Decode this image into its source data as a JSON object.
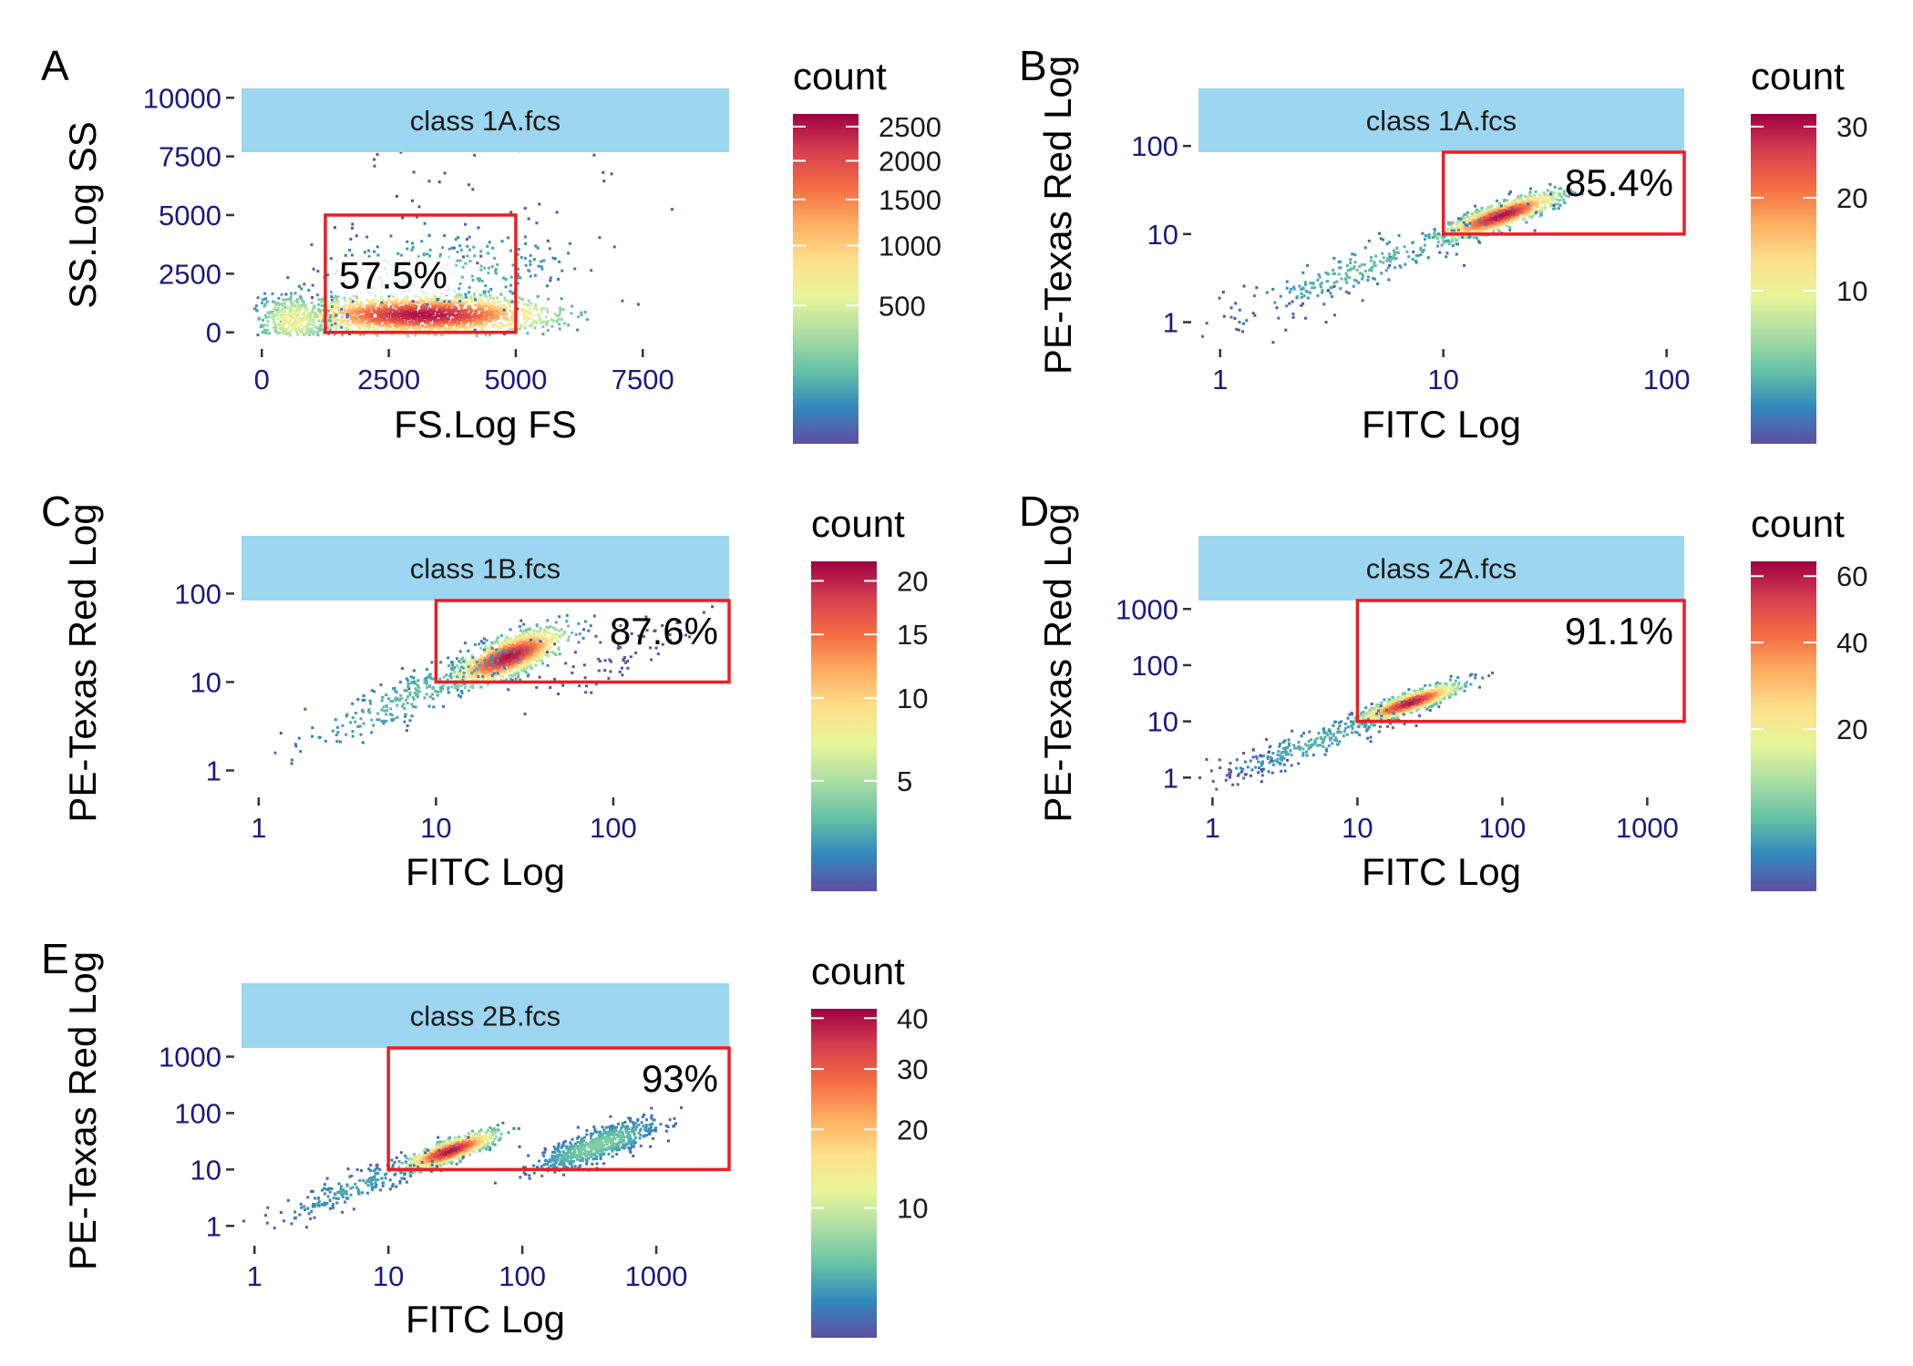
{
  "figure": {
    "strip_color": "#9dd6f0",
    "gate_color": "#ee1c24",
    "tick_label_color": "#1a1a80",
    "palette": [
      "#5e4fa2",
      "#3288bd",
      "#66c2a5",
      "#abdda4",
      "#e6f598",
      "#fee08b",
      "#fdae61",
      "#f46d43",
      "#d53e4f",
      "#9e0142"
    ]
  },
  "chart_data": [
    {
      "panel": "A",
      "type": "heatmap",
      "strip_title": "class 1A.fcs",
      "xlabel": "FS.Log FS",
      "ylabel": "SS.Log SS",
      "xscale": "linear",
      "yscale": "linear",
      "xlim": [
        -400,
        9200
      ],
      "ylim": [
        -400,
        10400
      ],
      "xticks": [
        {
          "value": 0,
          "label": "0"
        },
        {
          "value": 2500,
          "label": "2500"
        },
        {
          "value": 5000,
          "label": "5000"
        },
        {
          "value": 7500,
          "label": "7500"
        }
      ],
      "yticks": [
        {
          "value": 0,
          "label": "0"
        },
        {
          "value": 2500,
          "label": "2500"
        },
        {
          "value": 5000,
          "label": "5000"
        },
        {
          "value": 7500,
          "label": "7500"
        },
        {
          "value": 10000,
          "label": "10000"
        }
      ],
      "gate": {
        "x": [
          1250,
          5000
        ],
        "y": [
          0,
          5000
        ]
      },
      "gate_label": "57.5%",
      "gate_label_position": "center",
      "legend_title": "count",
      "legend_scale": "sqrt",
      "legend_range": [
        1,
        2700
      ],
      "legend_ticks": [
        {
          "value": 500,
          "label": "500"
        },
        {
          "value": 1000,
          "label": "1000"
        },
        {
          "value": 1500,
          "label": "1500"
        },
        {
          "value": 2000,
          "label": "2000"
        },
        {
          "value": 2500,
          "label": "2500"
        }
      ],
      "populations": [
        {
          "cx": 3150,
          "cy": 800,
          "sx": 1250,
          "sy": 420,
          "n": 1700,
          "weight": 1.0
        },
        {
          "cx": 600,
          "cy": 600,
          "sx": 380,
          "sy": 550,
          "n": 350,
          "weight": 0.25
        },
        {
          "cx": 3800,
          "cy": 2800,
          "sx": 1200,
          "sy": 800,
          "n": 220,
          "weight": 0.05
        },
        {
          "cx": 3500,
          "cy": 5500,
          "sx": 1900,
          "sy": 2200,
          "n": 60,
          "weight": 0.0
        }
      ]
    },
    {
      "panel": "B",
      "type": "heatmap",
      "strip_title": "class 1A.fcs",
      "xlabel": "FITC Log",
      "ylabel": "PE-Texas Red Log",
      "xscale": "log",
      "yscale": "log",
      "xlim": [
        0.8,
        120
      ],
      "ylim": [
        0.6,
        450
      ],
      "xticks": [
        {
          "value": 1,
          "label": "1"
        },
        {
          "value": 10,
          "label": "10"
        },
        {
          "value": 100,
          "label": "100"
        }
      ],
      "yticks": [
        {
          "value": 1,
          "label": "1"
        },
        {
          "value": 10,
          "label": "10"
        },
        {
          "value": 100,
          "label": "100"
        }
      ],
      "gate": {
        "x": [
          10,
          120
        ],
        "y": [
          10,
          100
        ]
      },
      "gate_label": "85.4%",
      "gate_label_position": "top-right",
      "legend_title": "count",
      "legend_scale": "sqrt",
      "legend_range": [
        1,
        32
      ],
      "legend_ticks": [
        {
          "value": 10,
          "label": "10"
        },
        {
          "value": 20,
          "label": "20"
        },
        {
          "value": 30,
          "label": "30"
        }
      ],
      "populations": [
        {
          "clx": 1.25,
          "cly": 1.22,
          "sa": 0.17,
          "sb": 0.05,
          "n": 1100,
          "weight": 1.0
        },
        {
          "clx": 0.65,
          "cly": 0.65,
          "sa": 0.4,
          "sb": 0.09,
          "n": 220,
          "weight": 0.05
        },
        {
          "clx": 0.15,
          "cly": 0.1,
          "sa": 0.25,
          "sb": 0.15,
          "n": 30,
          "weight": 0.0
        }
      ]
    },
    {
      "panel": "C",
      "type": "heatmap",
      "strip_title": "class 1B.fcs",
      "xlabel": "FITC Log",
      "ylabel": "PE-Texas Red Log",
      "xscale": "log",
      "yscale": "log",
      "xlim": [
        0.8,
        450
      ],
      "ylim": [
        0.6,
        450
      ],
      "xticks": [
        {
          "value": 1,
          "label": "1"
        },
        {
          "value": 10,
          "label": "10"
        },
        {
          "value": 100,
          "label": "100"
        }
      ],
      "yticks": [
        {
          "value": 1,
          "label": "1"
        },
        {
          "value": 10,
          "label": "10"
        },
        {
          "value": 100,
          "label": "100"
        }
      ],
      "gate": {
        "x": [
          10,
          450
        ],
        "y": [
          10,
          100
        ]
      },
      "gate_label": "87.6%",
      "gate_label_position": "top-right",
      "legend_title": "count",
      "legend_scale": "sqrt",
      "legend_range": [
        1,
        22
      ],
      "legend_ticks": [
        {
          "value": 5,
          "label": "5"
        },
        {
          "value": 10,
          "label": "10"
        },
        {
          "value": 15,
          "label": "15"
        },
        {
          "value": 20,
          "label": "20"
        }
      ],
      "populations": [
        {
          "clx": 1.4,
          "cly": 1.3,
          "sa": 0.2,
          "sb": 0.08,
          "n": 1200,
          "weight": 1.0
        },
        {
          "clx": 0.85,
          "cly": 0.85,
          "sa": 0.45,
          "sb": 0.1,
          "n": 260,
          "weight": 0.05
        },
        {
          "clx": 2.0,
          "cly": 1.3,
          "sa": 0.3,
          "sb": 0.12,
          "n": 70,
          "weight": 0.0
        }
      ]
    },
    {
      "panel": "D",
      "type": "heatmap",
      "strip_title": "class 2A.fcs",
      "xlabel": "FITC Log",
      "ylabel": "PE-Texas Red Log",
      "xscale": "log",
      "yscale": "log",
      "xlim": [
        0.8,
        1800
      ],
      "ylim": [
        0.6,
        20000
      ],
      "xticks": [
        {
          "value": 1,
          "label": "1"
        },
        {
          "value": 10,
          "label": "10"
        },
        {
          "value": 100,
          "label": "100"
        },
        {
          "value": 1000,
          "label": "1000"
        }
      ],
      "yticks": [
        {
          "value": 1,
          "label": "1"
        },
        {
          "value": 10,
          "label": "10"
        },
        {
          "value": 100,
          "label": "100"
        },
        {
          "value": 1000,
          "label": "1000"
        }
      ],
      "gate": {
        "x": [
          10,
          1800
        ],
        "y": [
          10,
          2000
        ]
      },
      "gate_label": "91.1%",
      "gate_label_position": "top-right",
      "legend_title": "count",
      "legend_scale": "sqrt",
      "legend_range": [
        1,
        65
      ],
      "legend_ticks": [
        {
          "value": 20,
          "label": "20"
        },
        {
          "value": 40,
          "label": "40"
        },
        {
          "value": 60,
          "label": "60"
        }
      ],
      "populations": [
        {
          "clx": 1.35,
          "cly": 1.35,
          "sa": 0.22,
          "sb": 0.06,
          "n": 1200,
          "weight": 1.0
        },
        {
          "clx": 0.7,
          "cly": 0.65,
          "sa": 0.45,
          "sb": 0.1,
          "n": 220,
          "weight": 0.04
        },
        {
          "clx": 0.2,
          "cly": 0.15,
          "sa": 0.25,
          "sb": 0.12,
          "n": 30,
          "weight": 0.0
        }
      ]
    },
    {
      "panel": "E",
      "type": "heatmap",
      "strip_title": "class 2B.fcs",
      "xlabel": "FITC Log",
      "ylabel": "PE-Texas Red Log",
      "xscale": "log",
      "yscale": "log",
      "xlim": [
        0.8,
        3500
      ],
      "ylim": [
        0.6,
        20000
      ],
      "xticks": [
        {
          "value": 1,
          "label": "1"
        },
        {
          "value": 10,
          "label": "10"
        },
        {
          "value": 100,
          "label": "100"
        },
        {
          "value": 1000,
          "label": "1000"
        }
      ],
      "yticks": [
        {
          "value": 1,
          "label": "1"
        },
        {
          "value": 10,
          "label": "10"
        },
        {
          "value": 100,
          "label": "100"
        },
        {
          "value": 1000,
          "label": "1000"
        }
      ],
      "gate": {
        "x": [
          10,
          3500
        ],
        "y": [
          10,
          2000
        ]
      },
      "gate_label": "93%",
      "gate_label_position": "top-right",
      "legend_title": "count",
      "legend_scale": "sqrt",
      "legend_range": [
        1,
        42
      ],
      "legend_ticks": [
        {
          "value": 10,
          "label": "10"
        },
        {
          "value": 20,
          "label": "20"
        },
        {
          "value": 30,
          "label": "30"
        },
        {
          "value": 40,
          "label": "40"
        }
      ],
      "populations": [
        {
          "clx": 1.45,
          "cly": 1.35,
          "sa": 0.22,
          "sb": 0.07,
          "n": 1000,
          "weight": 1.0
        },
        {
          "clx": 2.55,
          "cly": 1.45,
          "sa": 0.3,
          "sb": 0.1,
          "n": 650,
          "weight": 0.08
        },
        {
          "clx": 0.75,
          "cly": 0.7,
          "sa": 0.4,
          "sb": 0.1,
          "n": 200,
          "weight": 0.03
        }
      ]
    }
  ]
}
